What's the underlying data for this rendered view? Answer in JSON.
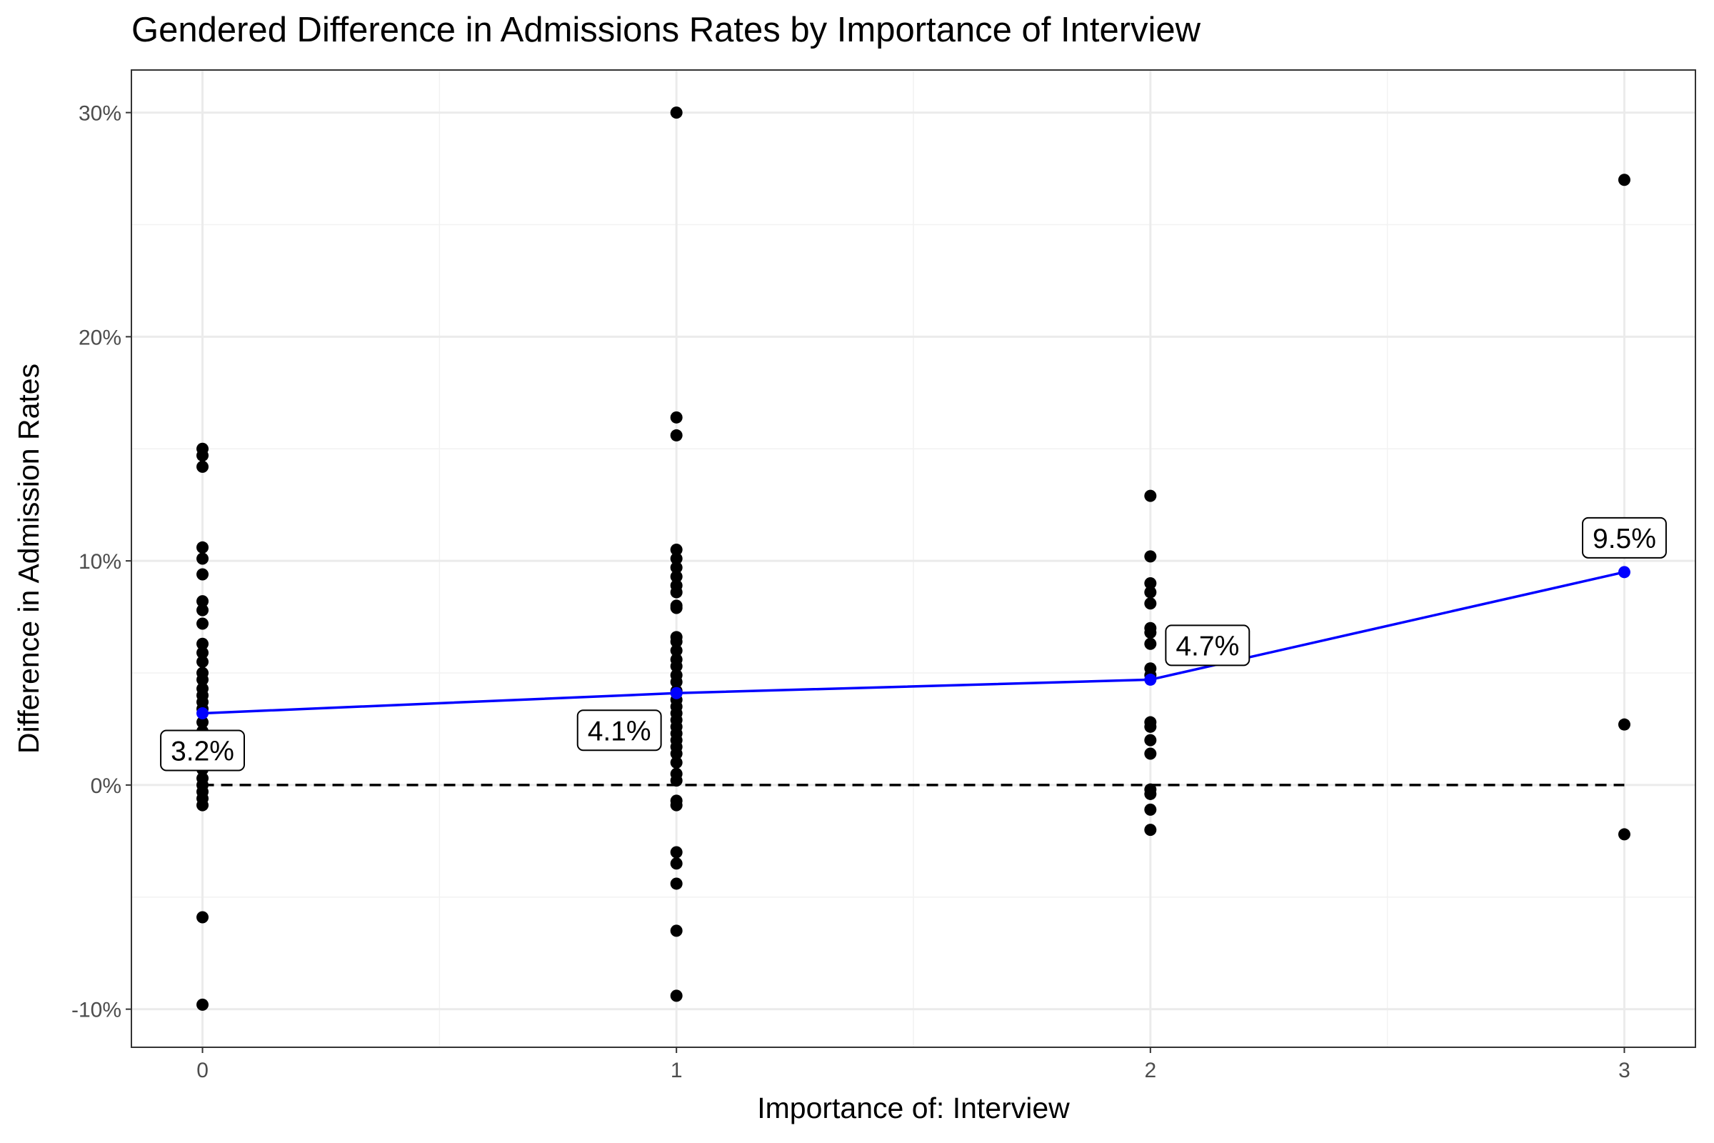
{
  "chart_data": {
    "type": "scatter",
    "title": "Gendered Difference in Admissions Rates by Importance of Interview",
    "xlabel": "Importance of: Interview",
    "ylabel": "Difference in Admission Rates",
    "xlim": [
      -0.15,
      3.15
    ],
    "ylim": [
      -11.7,
      31.9
    ],
    "x_ticks": [
      0,
      1,
      2,
      3
    ],
    "x_tick_labels": [
      "0",
      "1",
      "2",
      "3"
    ],
    "y_ticks": [
      -10,
      0,
      10,
      20,
      30
    ],
    "y_tick_labels": [
      "-10%",
      "0%",
      "10%",
      "20%",
      "30%"
    ],
    "grid": true,
    "reference_line": {
      "y": 0,
      "style": "dashed",
      "color": "#000000"
    },
    "series": [
      {
        "type": "scatter",
        "color": "#000000",
        "points": [
          {
            "x": 0,
            "y": 15.0
          },
          {
            "x": 0,
            "y": 14.7
          },
          {
            "x": 0,
            "y": 14.2
          },
          {
            "x": 0,
            "y": 10.6
          },
          {
            "x": 0,
            "y": 10.1
          },
          {
            "x": 0,
            "y": 9.4
          },
          {
            "x": 0,
            "y": 8.2
          },
          {
            "x": 0,
            "y": 7.8
          },
          {
            "x": 0,
            "y": 7.2
          },
          {
            "x": 0,
            "y": 6.3
          },
          {
            "x": 0,
            "y": 5.9
          },
          {
            "x": 0,
            "y": 5.5
          },
          {
            "x": 0,
            "y": 5.0
          },
          {
            "x": 0,
            "y": 4.7
          },
          {
            "x": 0,
            "y": 4.3
          },
          {
            "x": 0,
            "y": 4.0
          },
          {
            "x": 0,
            "y": 3.7
          },
          {
            "x": 0,
            "y": 3.4
          },
          {
            "x": 0,
            "y": 2.8
          },
          {
            "x": 0,
            "y": 2.4
          },
          {
            "x": 0,
            "y": 2.0
          },
          {
            "x": 0,
            "y": 1.6
          },
          {
            "x": 0,
            "y": 1.1
          },
          {
            "x": 0,
            "y": 0.7
          },
          {
            "x": 0,
            "y": 0.3
          },
          {
            "x": 0,
            "y": 0.0
          },
          {
            "x": 0,
            "y": -0.3
          },
          {
            "x": 0,
            "y": -0.6
          },
          {
            "x": 0,
            "y": -0.9
          },
          {
            "x": 0,
            "y": -5.9
          },
          {
            "x": 0,
            "y": -9.8
          },
          {
            "x": 1,
            "y": 30.0
          },
          {
            "x": 1,
            "y": 16.4
          },
          {
            "x": 1,
            "y": 15.6
          },
          {
            "x": 1,
            "y": 10.5
          },
          {
            "x": 1,
            "y": 10.1
          },
          {
            "x": 1,
            "y": 9.7
          },
          {
            "x": 1,
            "y": 9.3
          },
          {
            "x": 1,
            "y": 8.9
          },
          {
            "x": 1,
            "y": 8.6
          },
          {
            "x": 1,
            "y": 8.0
          },
          {
            "x": 1,
            "y": 7.9
          },
          {
            "x": 1,
            "y": 6.6
          },
          {
            "x": 1,
            "y": 6.4
          },
          {
            "x": 1,
            "y": 6.0
          },
          {
            "x": 1,
            "y": 5.6
          },
          {
            "x": 1,
            "y": 5.3
          },
          {
            "x": 1,
            "y": 4.9
          },
          {
            "x": 1,
            "y": 4.6
          },
          {
            "x": 1,
            "y": 4.2
          },
          {
            "x": 1,
            "y": 3.8
          },
          {
            "x": 1,
            "y": 3.5
          },
          {
            "x": 1,
            "y": 3.2
          },
          {
            "x": 1,
            "y": 2.9
          },
          {
            "x": 1,
            "y": 2.6
          },
          {
            "x": 1,
            "y": 2.3
          },
          {
            "x": 1,
            "y": 2.0
          },
          {
            "x": 1,
            "y": 1.7
          },
          {
            "x": 1,
            "y": 1.4
          },
          {
            "x": 1,
            "y": 1.0
          },
          {
            "x": 1,
            "y": 0.5
          },
          {
            "x": 1,
            "y": 0.2
          },
          {
            "x": 1,
            "y": -0.7
          },
          {
            "x": 1,
            "y": -0.9
          },
          {
            "x": 1,
            "y": -3.0
          },
          {
            "x": 1,
            "y": -3.5
          },
          {
            "x": 1,
            "y": -4.4
          },
          {
            "x": 1,
            "y": -6.5
          },
          {
            "x": 1,
            "y": -9.4
          },
          {
            "x": 2,
            "y": 12.9
          },
          {
            "x": 2,
            "y": 10.2
          },
          {
            "x": 2,
            "y": 9.0
          },
          {
            "x": 2,
            "y": 8.6
          },
          {
            "x": 2,
            "y": 8.1
          },
          {
            "x": 2,
            "y": 7.0
          },
          {
            "x": 2,
            "y": 6.8
          },
          {
            "x": 2,
            "y": 6.3
          },
          {
            "x": 2,
            "y": 5.2
          },
          {
            "x": 2,
            "y": 4.9
          },
          {
            "x": 2,
            "y": 2.8
          },
          {
            "x": 2,
            "y": 2.6
          },
          {
            "x": 2,
            "y": 2.0
          },
          {
            "x": 2,
            "y": 1.4
          },
          {
            "x": 2,
            "y": -0.2
          },
          {
            "x": 2,
            "y": -0.4
          },
          {
            "x": 2,
            "y": -1.1
          },
          {
            "x": 2,
            "y": -2.0
          },
          {
            "x": 3,
            "y": 27.0
          },
          {
            "x": 3,
            "y": 2.7
          },
          {
            "x": 3,
            "y": -2.2
          }
        ]
      },
      {
        "type": "line",
        "color": "#0000ff",
        "x": [
          0,
          1,
          2,
          3
        ],
        "y": [
          3.2,
          4.1,
          4.7,
          9.5
        ],
        "labels": [
          "3.2%",
          "4.1%",
          "4.7%",
          "9.5%"
        ]
      }
    ]
  }
}
